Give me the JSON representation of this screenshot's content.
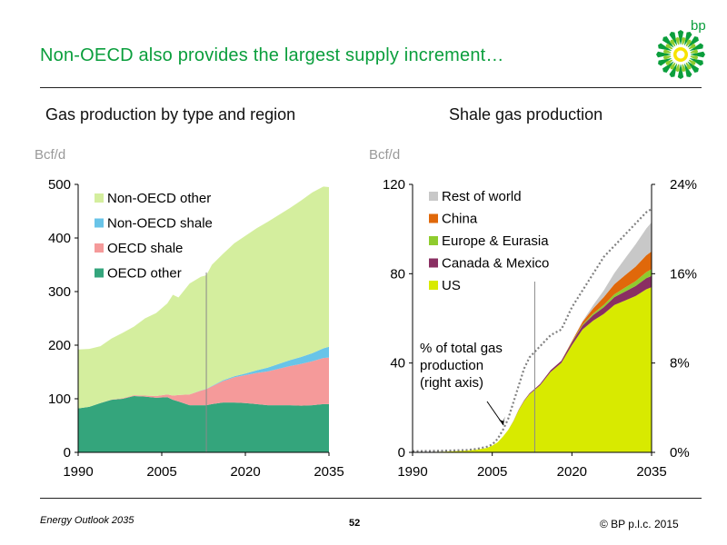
{
  "header": {
    "title": "Non-OECD also provides the largest supply increment…",
    "logo_text": "bp"
  },
  "footer": {
    "source": "Energy Outlook 2035",
    "page": "52",
    "copyright": "© BP p.l.c. 2015"
  },
  "colors": {
    "title_green": "#0a9e3c",
    "non_oecd_other": "#d4ee9e",
    "non_oecd_shale": "#69c4e8",
    "oecd_shale": "#f59a9a",
    "oecd_other": "#34a57c",
    "us": "#d8ea00",
    "canada_mexico": "#8a2f62",
    "europe_eurasia": "#8fcc2e",
    "china": "#e0680a",
    "rest_of_world": "#c8c8c8",
    "pct_line": "#808080"
  },
  "chart_data": [
    {
      "type": "area",
      "stacked": true,
      "title": "Gas production by type and region",
      "ylabel": "Bcf/d",
      "ylim": [
        0,
        500
      ],
      "yticks": [
        0,
        100,
        200,
        300,
        400,
        500
      ],
      "xticks": [
        1990,
        2005,
        2020,
        2035
      ],
      "x": [
        1990,
        1992,
        1994,
        1996,
        1998,
        2000,
        2002,
        2004,
        2006,
        2007,
        2008,
        2010,
        2012,
        2013,
        2014,
        2016,
        2018,
        2020,
        2022,
        2024,
        2026,
        2028,
        2030,
        2032,
        2034,
        2035
      ],
      "divider_x": 2013,
      "legend_position": "top-left",
      "series": [
        {
          "name": "OECD other",
          "color_key": "oecd_other",
          "values": [
            82,
            85,
            92,
            98,
            100,
            105,
            104,
            102,
            103,
            98,
            95,
            88,
            88,
            88,
            90,
            93,
            93,
            92,
            90,
            88,
            88,
            88,
            87,
            88,
            90,
            90
          ]
        },
        {
          "name": "OECD shale",
          "color_key": "oecd_shale",
          "values": [
            0,
            0,
            0,
            0.5,
            1,
            1.5,
            2,
            3,
            5,
            8,
            12,
            20,
            27,
            30,
            33,
            40,
            47,
            52,
            58,
            63,
            68,
            73,
            78,
            82,
            86,
            87
          ]
        },
        {
          "name": "Non-OECD shale",
          "color_key": "non_oecd_shale",
          "values": [
            0,
            0,
            0,
            0,
            0,
            0,
            0,
            0,
            0,
            0,
            0,
            0,
            0.5,
            0.5,
            1,
            1.5,
            2,
            3,
            5,
            7,
            9,
            11,
            13,
            15,
            18,
            20
          ]
        },
        {
          "name": "Non-OECD other",
          "color_key": "non_oecd_other",
          "values": [
            110,
            108,
            106,
            114,
            122,
            128,
            144,
            155,
            170,
            188,
            182,
            207,
            212,
            212,
            226,
            236,
            248,
            257,
            265,
            272,
            278,
            284,
            292,
            300,
            302,
            298
          ]
        }
      ]
    },
    {
      "type": "area",
      "stacked": true,
      "title": "Shale gas production",
      "ylabel": "Bcf/d",
      "ylim": [
        0,
        120
      ],
      "yticks": [
        0,
        40,
        80,
        120
      ],
      "y2lim": [
        0,
        24
      ],
      "y2ticks": [
        "0%",
        "8%",
        "16%",
        "24%"
      ],
      "xticks": [
        1990,
        2005,
        2020,
        2035
      ],
      "x": [
        1990,
        1996,
        2000,
        2002,
        2004,
        2005,
        2006,
        2007,
        2008,
        2009,
        2010,
        2011,
        2012,
        2013,
        2014,
        2015,
        2016,
        2018,
        2020,
        2022,
        2024,
        2026,
        2028,
        2030,
        2032,
        2034,
        2035
      ],
      "divider_x": 2013,
      "legend_position": "top-left",
      "series": [
        {
          "name": "US",
          "color_key": "us",
          "values": [
            0,
            0.3,
            0.8,
            1.2,
            2,
            3,
            4.5,
            7,
            10,
            14,
            19,
            23,
            26,
            28,
            30,
            33,
            36,
            40,
            48,
            55,
            59,
            62,
            66,
            68,
            70,
            73,
            74
          ]
        },
        {
          "name": "Canada & Mexico",
          "color_key": "canada_mexico",
          "values": [
            0,
            0,
            0,
            0,
            0,
            0,
            0,
            0,
            0,
            0.1,
            0.2,
            0.3,
            0.4,
            0.5,
            0.6,
            0.7,
            0.8,
            1,
            1.3,
            1.8,
            2.5,
            3,
            3.5,
            4,
            4.5,
            5,
            5
          ]
        },
        {
          "name": "Europe & Eurasia",
          "color_key": "europe_eurasia",
          "values": [
            0,
            0,
            0,
            0,
            0,
            0,
            0,
            0,
            0,
            0,
            0,
            0,
            0,
            0,
            0,
            0,
            0,
            0,
            0.2,
            0.4,
            0.7,
            1,
            1.3,
            1.8,
            2.2,
            2.7,
            3
          ]
        },
        {
          "name": "China",
          "color_key": "china",
          "values": [
            0,
            0,
            0,
            0,
            0,
            0,
            0,
            0,
            0,
            0,
            0,
            0,
            0,
            0,
            0,
            0,
            0,
            0,
            0.3,
            1.2,
            2.2,
            3.5,
            4.5,
            5.5,
            6.5,
            7.5,
            8
          ]
        },
        {
          "name": "Rest of world",
          "color_key": "rest_of_world",
          "values": [
            0,
            0,
            0,
            0,
            0,
            0,
            0,
            0,
            0,
            0,
            0,
            0,
            0,
            0,
            0,
            0,
            0,
            0,
            0,
            0.3,
            1.5,
            3,
            5,
            7.5,
            10,
            12,
            13
          ]
        }
      ],
      "secondary_line": {
        "name": "% of total gas production (right axis)",
        "annotation_lines": [
          "% of total gas",
          "production",
          "(right axis)"
        ],
        "color_key": "pct_line",
        "values": [
          0.1,
          0.15,
          0.2,
          0.3,
          0.5,
          0.7,
          1.2,
          2,
          3,
          4.5,
          6,
          7.5,
          8.5,
          9,
          9.5,
          10,
          10.5,
          11,
          13,
          14.5,
          16,
          17.5,
          18.5,
          19.5,
          20.5,
          21.5,
          21.8
        ]
      }
    }
  ]
}
